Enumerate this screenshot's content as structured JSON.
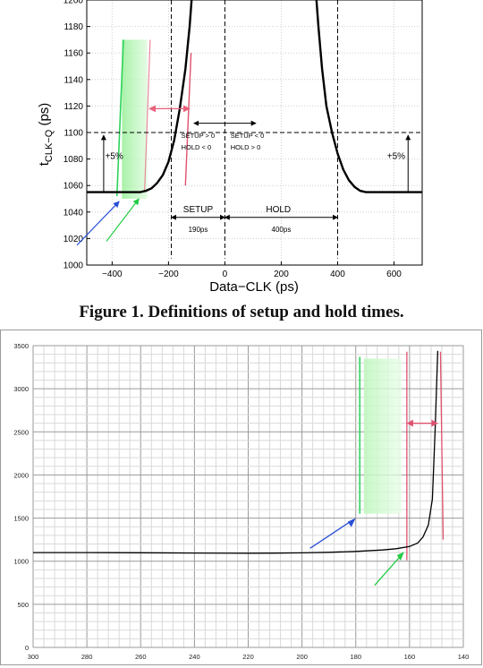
{
  "caption": "Figure 1.  Definitions of setup and hold times.",
  "colors": {
    "blue_arrow": "#2a4fd6",
    "green_arrow": "#22cc44",
    "green_line": "#2dd35a",
    "green_band": "#b9f5b9",
    "pink_line": "#e0506e",
    "pink_arrow": "#e8607a",
    "curve": "#000000",
    "grid_light": "#d9d9d9",
    "grid_dark": "#9a9a9a"
  },
  "chart_data": [
    {
      "type": "line",
      "title": "",
      "xlabel": "Data−CLK (ps)",
      "ylabel_main": "t",
      "ylabel_sub": "CLK−Q",
      "ylabel_unit": " (ps)",
      "xlim": [
        -490,
        700
      ],
      "ylim": [
        1000,
        1200
      ],
      "xticks": [
        -400,
        -200,
        0,
        200,
        400,
        600
      ],
      "xtick_labels": [
        "−400",
        "−200",
        "0",
        "200",
        "400",
        "600"
      ],
      "yticks": [
        1000,
        1020,
        1040,
        1060,
        1080,
        1100,
        1120,
        1140,
        1160,
        1180,
        1200
      ],
      "ytick_labels": [
        "1000",
        "1020",
        "1040",
        "1060",
        "1080",
        "1100",
        "1120",
        "1140",
        "1160",
        "1180",
        "1200"
      ],
      "grid": "dashed",
      "series": [
        {
          "x": [
            -490,
            -300,
            -280,
            -260,
            -240,
            -220,
            -200,
            -180,
            -160,
            -140,
            -125,
            -118
          ],
          "y": [
            1055,
            1055,
            1056,
            1058,
            1062,
            1068,
            1078,
            1094,
            1118,
            1148,
            1180,
            1200
          ]
        },
        {
          "x": [
            325,
            332,
            345,
            360,
            380,
            400,
            420,
            440,
            460,
            480,
            500,
            700
          ],
          "y": [
            1200,
            1180,
            1148,
            1120,
            1100,
            1084,
            1072,
            1064,
            1059,
            1056,
            1055,
            1055
          ]
        }
      ],
      "reference_lines": {
        "y_dashed": 1100,
        "x_dashed": [
          -190,
          0,
          400
        ]
      },
      "annotations": {
        "plus5_left": "+5%",
        "plus5_right": "+5%",
        "setup_pos": "SETUP > 0",
        "hold_neg": "HOLD < 0",
        "setup_neg": "SETUP < 0",
        "hold_pos": "HOLD > 0",
        "setup": "SETUP",
        "hold": "HOLD",
        "setup_time": "190ps",
        "hold_time": "400ps"
      }
    },
    {
      "type": "line",
      "title": "",
      "xlabel": "",
      "ylabel": "",
      "xlim": [
        300,
        140
      ],
      "ylim": [
        0,
        3500
      ],
      "xticks": [
        300,
        280,
        260,
        240,
        220,
        200,
        180,
        160,
        140
      ],
      "xtick_labels": [
        "300",
        "280",
        "260",
        "240",
        "220",
        "200",
        "180",
        "160",
        "140"
      ],
      "yticks": [
        0,
        500,
        1000,
        1500,
        2000,
        2500,
        3000,
        3500
      ],
      "ytick_labels": [
        "0",
        "500",
        "1000",
        "1500",
        "2000",
        "2500",
        "3000",
        "3500"
      ],
      "grid": "solid",
      "series": [
        {
          "x": [
            300,
            280,
            260,
            240,
            220,
            210,
            200,
            190,
            180,
            170,
            165,
            160,
            157,
            155,
            153,
            151.5,
            150.5,
            149.5
          ],
          "y": [
            1100,
            1100,
            1098,
            1095,
            1093,
            1094,
            1097,
            1103,
            1113,
            1130,
            1145,
            1170,
            1210,
            1280,
            1420,
            1720,
            2500,
            3440
          ]
        }
      ]
    }
  ]
}
